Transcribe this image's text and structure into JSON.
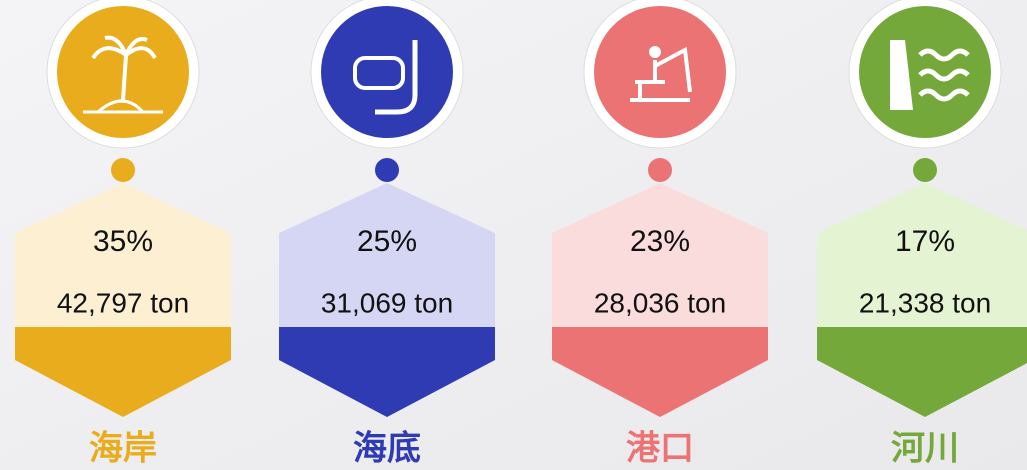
{
  "items": [
    {
      "percent": "35%",
      "amount": "42,797 ton",
      "label": "海岸"
    },
    {
      "percent": "25%",
      "amount": "31,069 ton",
      "label": "海底"
    },
    {
      "percent": "23%",
      "amount": "28,036 ton",
      "label": "港口"
    },
    {
      "percent": "17%",
      "amount": "21,338 ton",
      "label": "河川"
    }
  ]
}
